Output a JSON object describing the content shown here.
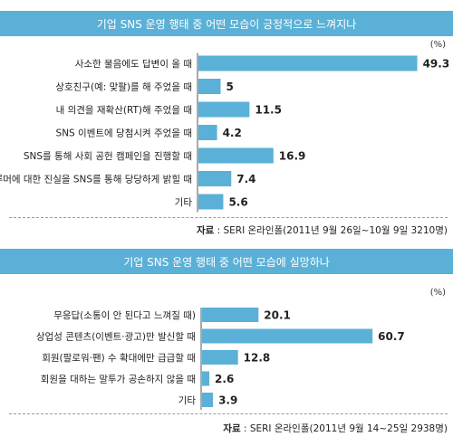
{
  "chart_data": [
    {
      "type": "bar",
      "orientation": "horizontal",
      "title": "기업 SNS 운영 행태 중 어떤 모습이 긍정적으로 느껴지나",
      "unit": "(%)",
      "categories": [
        "사소한 물음에도 답변이 올 때",
        "상호친구(예: 맞팔)를 해 주었을 때",
        "내 의견을 재확산(RT)해 주었을 때",
        "SNS 이벤트에 당첨시켜 주었을 때",
        "SNS를 통해 사회 공헌 캠페인을 진행할 때",
        "루머에 대한 진실을 SNS를 통해 당당하게 밝힐 때",
        "기타"
      ],
      "values": [
        49.3,
        5,
        11.5,
        4.2,
        16.9,
        7.4,
        5.6
      ],
      "value_labels": [
        "49.3",
        "5",
        "11.5",
        "4.2",
        "16.9",
        "7.4",
        "5.6"
      ],
      "source_label": "자료",
      "source_text": " : SERI 온라인폴(2011년 9월 26일~10월 9일  3210명)",
      "bar_color": "#5ab0d6"
    },
    {
      "type": "bar",
      "orientation": "horizontal",
      "title": "기업 SNS 운영 행태 중 어떤 모습에 실망하나",
      "unit": "(%)",
      "categories": [
        "무응답(소통이 안 된다고 느껴질 때)",
        "상업성 콘텐츠(이벤트·광고)만 발신할 때",
        "회원(팔로워·팬) 수 확대에만 급급할 때",
        "회원을 대하는 말투가 공손하지 않을 때",
        "기타"
      ],
      "values": [
        20.1,
        60.7,
        12.8,
        2.6,
        3.9
      ],
      "value_labels": [
        "20.1",
        "60.7",
        "12.8",
        "2.6",
        "3.9"
      ],
      "source_label": "자료",
      "source_text": " : SERI 온라인폴(2011년 9월 14~25일  2938명)",
      "bar_color": "#5ab0d6"
    }
  ]
}
